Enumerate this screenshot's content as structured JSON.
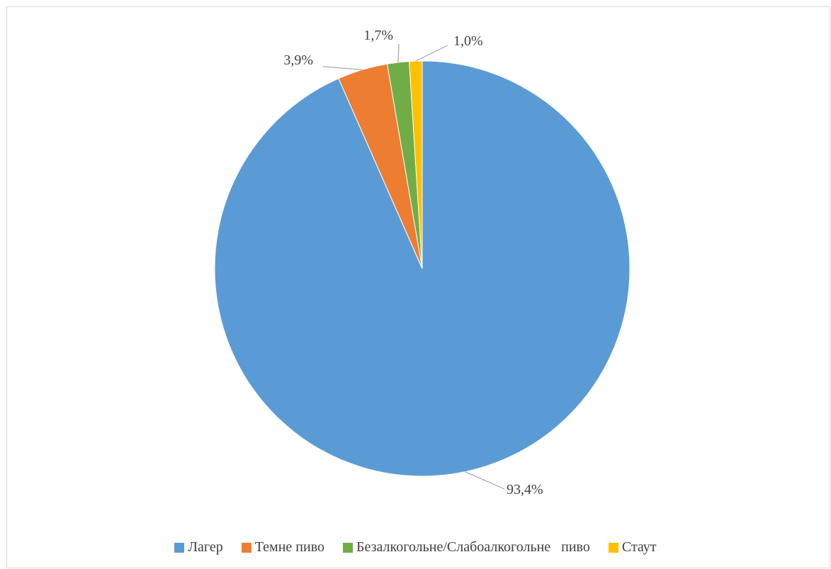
{
  "chart_data": {
    "type": "pie",
    "title": "",
    "categories": [
      "Лагер",
      "Темне пиво",
      "Безалкогольне/Слабоалкогольне   пиво",
      "Стаут"
    ],
    "values": [
      93.4,
      3.9,
      1.7,
      1.0
    ],
    "data_labels": [
      "93,4%",
      "3,9%",
      "1,7%",
      "1,0%"
    ],
    "colors": [
      "#5b9bd5",
      "#ed7d31",
      "#70ad47",
      "#ffc000"
    ],
    "start_angle": "12 o'clock",
    "direction": "clockwise",
    "legend_position": "bottom"
  }
}
